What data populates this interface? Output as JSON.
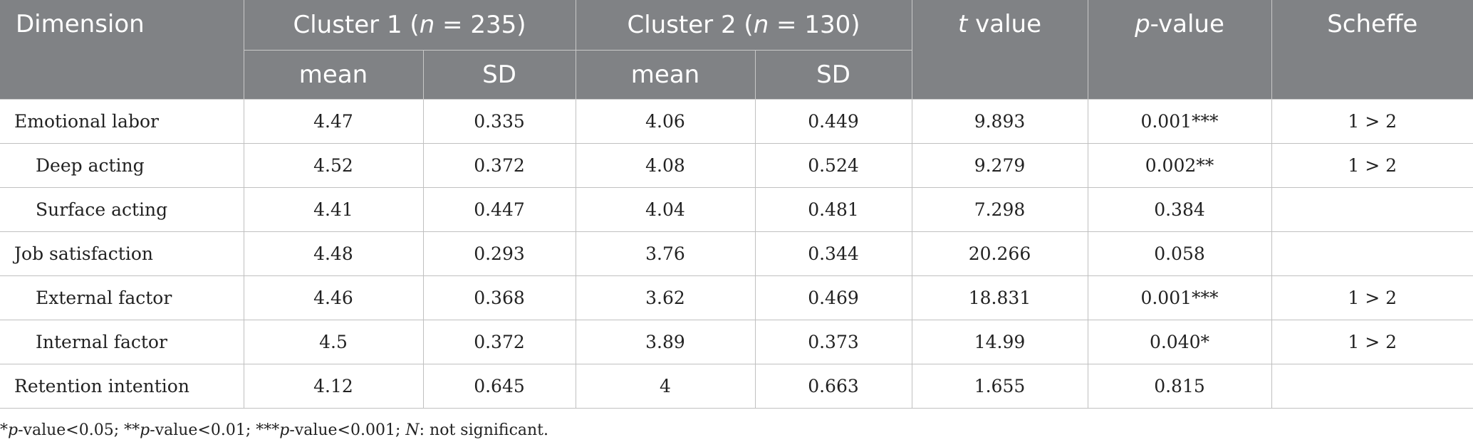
{
  "header": {
    "dimension": "Dimension",
    "cluster1_prefix": "Cluster 1 (",
    "cluster2_prefix": "Cluster 2 (",
    "n_symbol": "n",
    "cluster1_suffix": " = 235)",
    "cluster2_suffix": " = 130)",
    "t_symbol": "t",
    "t_suffix": " value",
    "p_symbol": "p",
    "p_suffix": "-value",
    "scheffe": "Scheffe",
    "mean": "mean",
    "sd": "SD"
  },
  "rows": [
    {
      "label": "Emotional labor",
      "c1_mean": "4.47",
      "c1_sd": "0.335",
      "c2_mean": "4.06",
      "c2_sd": "0.449",
      "t": "9.893",
      "p": "0.001***",
      "scheffe": "1 > 2"
    },
    {
      "label": "Deep acting",
      "c1_mean": "4.52",
      "c1_sd": "0.372",
      "c2_mean": "4.08",
      "c2_sd": "0.524",
      "t": "9.279",
      "p": "0.002**",
      "scheffe": "1 > 2"
    },
    {
      "label": "Surface acting",
      "c1_mean": "4.41",
      "c1_sd": "0.447",
      "c2_mean": "4.04",
      "c2_sd": "0.481",
      "t": "7.298",
      "p": "0.384",
      "scheffe": ""
    },
    {
      "label": "Job satisfaction",
      "c1_mean": "4.48",
      "c1_sd": "0.293",
      "c2_mean": "3.76",
      "c2_sd": "0.344",
      "t": "20.266",
      "p": "0.058",
      "scheffe": ""
    },
    {
      "label": "External factor",
      "c1_mean": "4.46",
      "c1_sd": "0.368",
      "c2_mean": "3.62",
      "c2_sd": "0.469",
      "t": "18.831",
      "p": "0.001***",
      "scheffe": "1 > 2"
    },
    {
      "label": "Internal factor",
      "c1_mean": "4.5",
      "c1_sd": "0.372",
      "c2_mean": "3.89",
      "c2_sd": "0.373",
      "t": "14.99",
      "p": "0.040*",
      "scheffe": "1 > 2"
    },
    {
      "label": "Retention intention",
      "c1_mean": "4.12",
      "c1_sd": "0.645",
      "c2_mean": "4",
      "c2_sd": "0.663",
      "t": "1.655",
      "p": "0.815",
      "scheffe": ""
    }
  ],
  "footnote": {
    "s1": "*",
    "p1": "p",
    "t1": "-value<0.05; **",
    "p2": "p",
    "t2": "-value<0.01; ***",
    "p3": "p",
    "t3": "-value<0.001; ",
    "n": "N",
    "t4": ": not significant."
  }
}
